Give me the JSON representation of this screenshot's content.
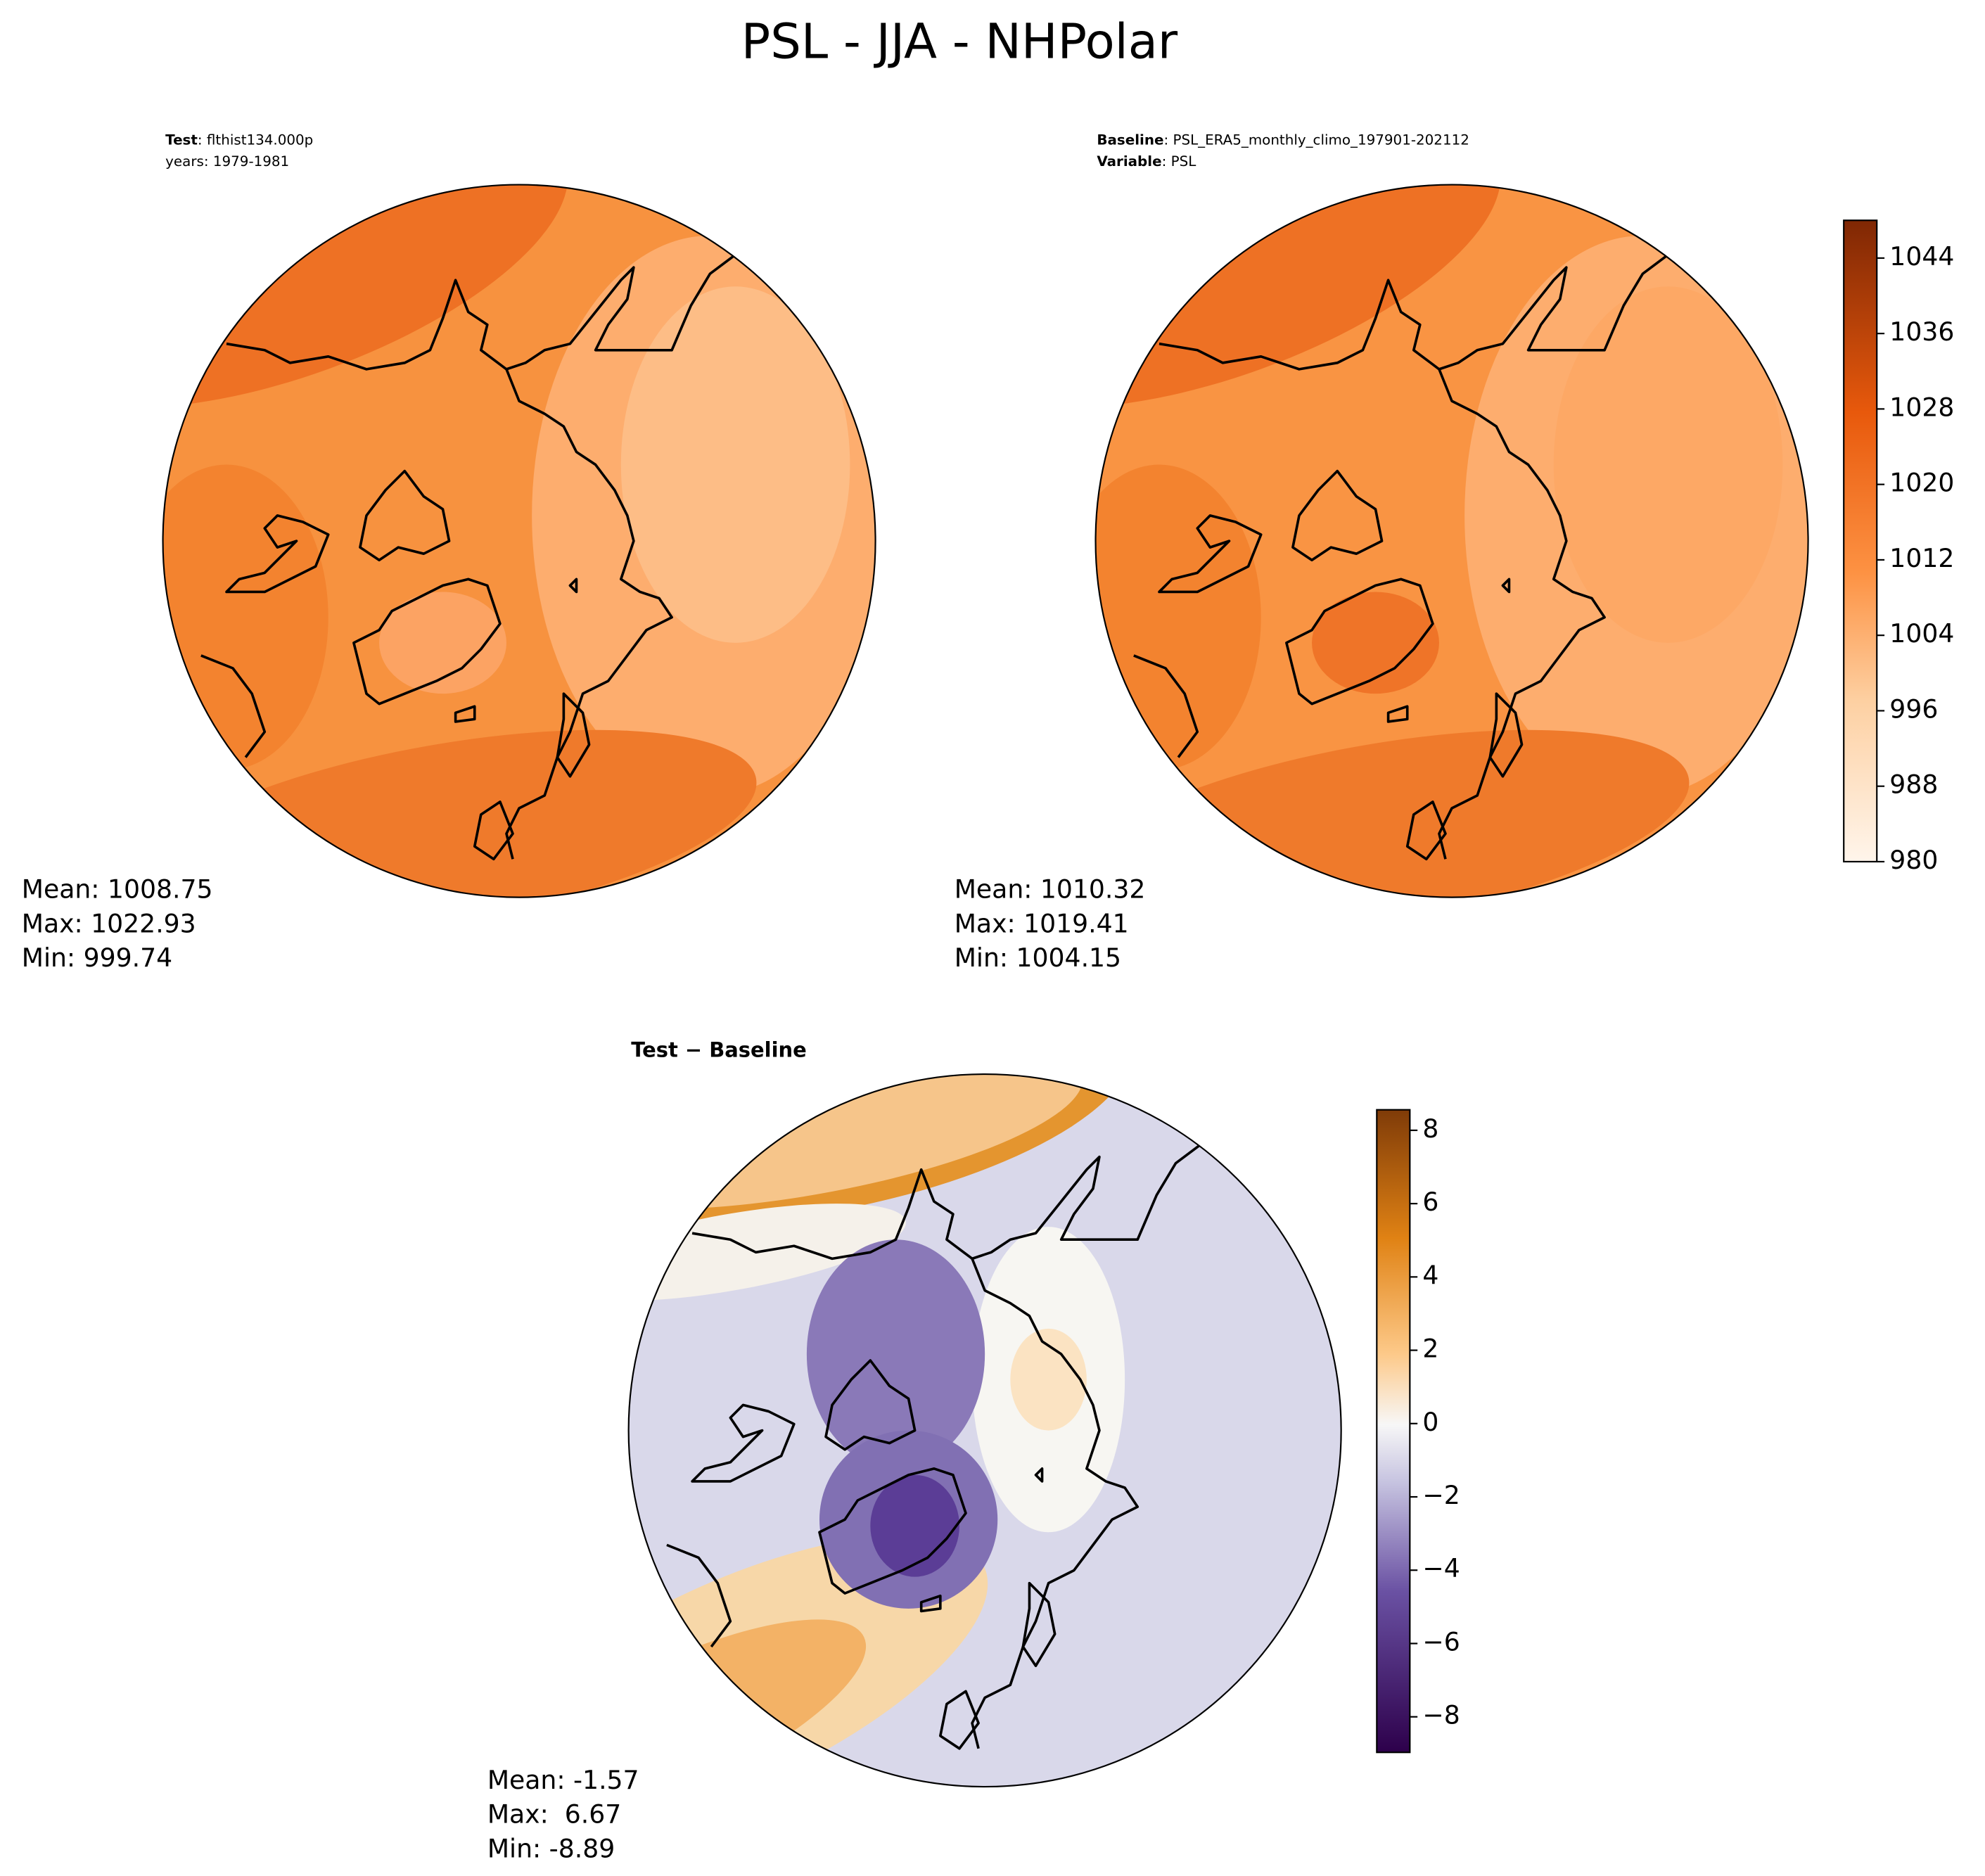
{
  "title": "PSL - JJA - NHPolar",
  "panels": [
    {
      "header": [
        {
          "label": "Test",
          "text": ": flthist134.000p"
        },
        {
          "text": "years: 1979-1981"
        }
      ],
      "stats": [
        "Mean: 1008.75",
        "Max: 1022.93",
        "Min: 999.74"
      ]
    },
    {
      "header": [
        {
          "label": "Baseline",
          "text": ": PSL_ERA5_monthly_climo_197901-202112"
        },
        {
          "label": "Variable",
          "text": ": PSL"
        }
      ],
      "stats": [
        "Mean: 1010.32",
        "Max: 1019.41",
        "Min: 1004.15"
      ]
    },
    {
      "header": [
        {
          "label": "Test − Baseline"
        }
      ],
      "stats": [
        "Mean: -1.57",
        "Max:  6.67",
        "Min: -8.89"
      ]
    }
  ],
  "colorbars": [
    {
      "lim": [
        980,
        1048
      ],
      "ticks": [
        980,
        988,
        996,
        1004,
        1012,
        1020,
        1028,
        1036,
        1044
      ]
    },
    {
      "lim": [
        -8.97,
        8.56
      ],
      "ticks": [
        {
          "value": -8,
          "label": "−8"
        },
        {
          "value": -6,
          "label": "−6"
        },
        {
          "value": -4,
          "label": "−4"
        },
        {
          "value": -2,
          "label": "−2"
        },
        0,
        2,
        4,
        6,
        8
      ]
    }
  ]
}
